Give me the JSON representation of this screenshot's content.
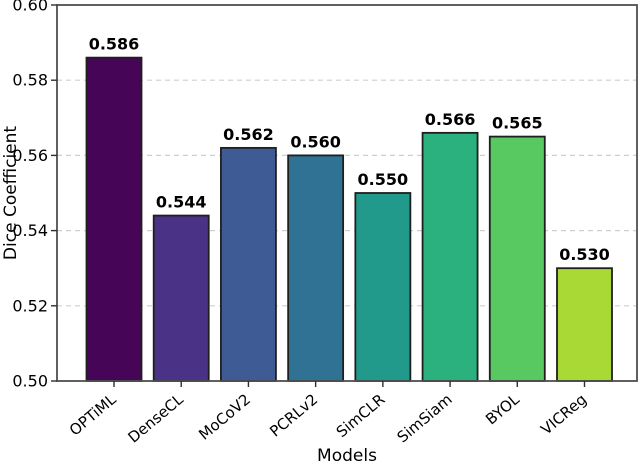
{
  "chart_data": {
    "type": "bar",
    "title": "",
    "xlabel": "Models",
    "ylabel": "Dice Coefficient",
    "categories": [
      "OPTiML",
      "DenseCL",
      "MoCoV2",
      "PCRLv2",
      "SimCLR",
      "SimSiam",
      "BYOL",
      "VICReg"
    ],
    "values": [
      0.586,
      0.544,
      0.562,
      0.56,
      0.55,
      0.566,
      0.565,
      0.53
    ],
    "value_labels": [
      "0.586",
      "0.544",
      "0.562",
      "0.560",
      "0.550",
      "0.566",
      "0.565",
      "0.530"
    ],
    "bar_colors": [
      "#470557",
      "#4a3286",
      "#3f5b95",
      "#2f7293",
      "#229a8b",
      "#2bb17e",
      "#58c860",
      "#a9d934"
    ],
    "bar_edge_color": "#1f1f1f",
    "ylim": [
      0.5,
      0.6
    ],
    "yticks": [
      "0.50",
      "0.52",
      "0.54",
      "0.56",
      "0.58",
      "0.60"
    ],
    "grid": "horizontal-dashed",
    "grid_color": "#cfcfcf",
    "spine_color": "#4f4f4f",
    "tick_color": "#2f2f2f",
    "text_color": "#000000",
    "legend_position": "none",
    "background_color": "#ffffff",
    "x_tick_rotation_deg": 40
  }
}
